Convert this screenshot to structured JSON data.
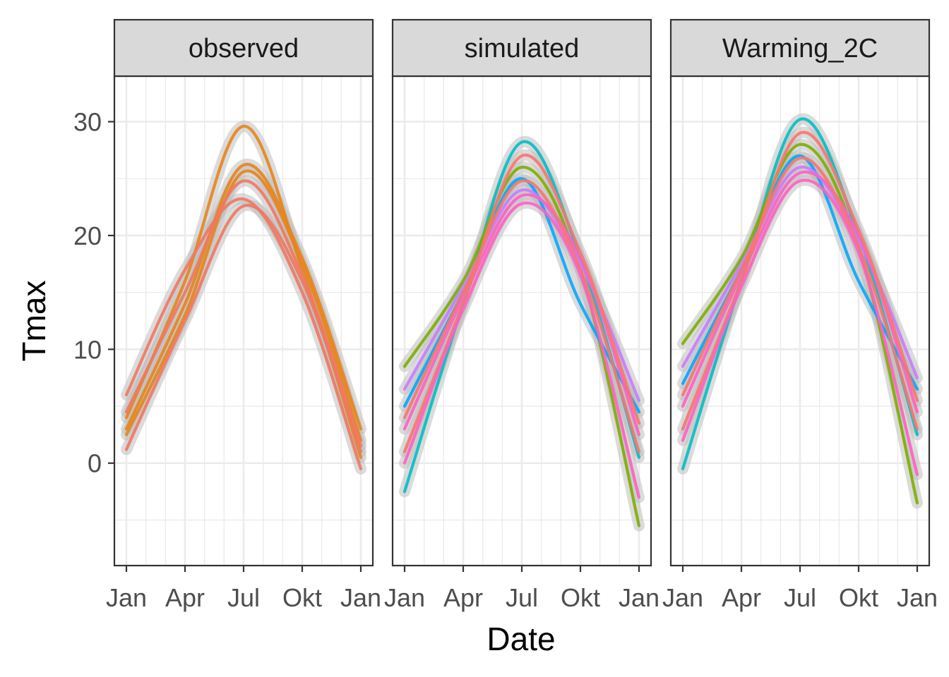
{
  "chart_data": {
    "type": "line",
    "facet_by": "scenario",
    "panels": [
      {
        "label": "observed",
        "series": [
          {
            "color": "#E8841A",
            "x": [
              "Jan",
              "Apr",
              "Jul",
              "Okt",
              "Jan"
            ],
            "y": [
              4.0,
              16.0,
              29.6,
              17.0,
              0.5
            ]
          },
          {
            "color": "#E8841A",
            "x": [
              "Jan",
              "Apr",
              "Jul",
              "Okt",
              "Jan"
            ],
            "y": [
              3.0,
              14.0,
              26.2,
              18.0,
              3.0
            ]
          },
          {
            "color": "#E8841A",
            "x": [
              "Jan",
              "Apr",
              "Jul",
              "Okt",
              "Jan"
            ],
            "y": [
              2.5,
              13.0,
              25.6,
              17.5,
              2.0
            ]
          },
          {
            "color": "#F07860",
            "x": [
              "Jan",
              "Apr",
              "Jul",
              "Okt",
              "Jan"
            ],
            "y": [
              6.0,
              17.0,
              23.2,
              15.0,
              -0.5
            ]
          },
          {
            "color": "#F07860",
            "x": [
              "Jan",
              "Apr",
              "Jul",
              "Okt",
              "Jan"
            ],
            "y": [
              1.2,
              12.5,
              22.6,
              16.0,
              1.0
            ]
          },
          {
            "color": "#F07860",
            "x": [
              "Jan",
              "Apr",
              "Jul",
              "Okt",
              "Jan"
            ],
            "y": [
              4.5,
              15.0,
              24.8,
              16.5,
              1.5
            ]
          }
        ]
      },
      {
        "label": "simulated",
        "series": [
          {
            "color": "#00BFC4",
            "x": [
              "Jan",
              "Apr",
              "Jul",
              "Okt",
              "Jan"
            ],
            "y": [
              -2.5,
              14.0,
              28.2,
              18.0,
              0.5
            ]
          },
          {
            "color": "#7CAE00",
            "x": [
              "Jan",
              "Apr",
              "Jul",
              "Okt",
              "Jan"
            ],
            "y": [
              8.5,
              16.0,
              26.0,
              17.0,
              -5.5
            ]
          },
          {
            "color": "#00A9FF",
            "x": [
              "Jan",
              "Apr",
              "Jul",
              "Okt",
              "Jan"
            ],
            "y": [
              5.0,
              15.0,
              25.0,
              14.0,
              4.5
            ]
          },
          {
            "color": "#C77CFF",
            "x": [
              "Jan",
              "Apr",
              "Jul",
              "Okt",
              "Jan"
            ],
            "y": [
              6.5,
              15.5,
              24.0,
              17.5,
              5.5
            ]
          },
          {
            "color": "#FF61C3",
            "x": [
              "Jan",
              "Apr",
              "Jul",
              "Okt",
              "Jan"
            ],
            "y": [
              3.0,
              14.5,
              23.5,
              18.0,
              2.5
            ]
          },
          {
            "color": "#F8766D",
            "x": [
              "Jan",
              "Apr",
              "Jul",
              "Okt",
              "Jan"
            ],
            "y": [
              1.0,
              14.0,
              27.0,
              18.5,
              3.5
            ]
          },
          {
            "color": "#F8766D",
            "x": [
              "Jan",
              "Apr",
              "Jul",
              "Okt",
              "Jan"
            ],
            "y": [
              4.0,
              15.0,
              24.8,
              17.0,
              1.0
            ]
          },
          {
            "color": "#FF61C3",
            "x": [
              "Jan",
              "Apr",
              "Jul",
              "Okt",
              "Jan"
            ],
            "y": [
              0.0,
              13.5,
              22.8,
              16.5,
              -3.0
            ]
          }
        ]
      },
      {
        "label": "Warming_2C",
        "series": [
          {
            "color": "#00BFC4",
            "x": [
              "Jan",
              "Apr",
              "Jul",
              "Okt",
              "Jan"
            ],
            "y": [
              -0.5,
              16.0,
              30.2,
              20.0,
              2.5
            ]
          },
          {
            "color": "#7CAE00",
            "x": [
              "Jan",
              "Apr",
              "Jul",
              "Okt",
              "Jan"
            ],
            "y": [
              10.5,
              18.0,
              28.0,
              19.0,
              -3.5
            ]
          },
          {
            "color": "#00A9FF",
            "x": [
              "Jan",
              "Apr",
              "Jul",
              "Okt",
              "Jan"
            ],
            "y": [
              7.0,
              17.0,
              27.0,
              16.0,
              6.5
            ]
          },
          {
            "color": "#C77CFF",
            "x": [
              "Jan",
              "Apr",
              "Jul",
              "Okt",
              "Jan"
            ],
            "y": [
              8.5,
              17.5,
              26.0,
              19.5,
              7.5
            ]
          },
          {
            "color": "#FF61C3",
            "x": [
              "Jan",
              "Apr",
              "Jul",
              "Okt",
              "Jan"
            ],
            "y": [
              5.0,
              16.5,
              25.5,
              20.0,
              4.5
            ]
          },
          {
            "color": "#F8766D",
            "x": [
              "Jan",
              "Apr",
              "Jul",
              "Okt",
              "Jan"
            ],
            "y": [
              3.0,
              16.0,
              29.0,
              20.5,
              5.5
            ]
          },
          {
            "color": "#F8766D",
            "x": [
              "Jan",
              "Apr",
              "Jul",
              "Okt",
              "Jan"
            ],
            "y": [
              6.0,
              17.0,
              26.8,
              19.0,
              3.0
            ]
          },
          {
            "color": "#FF61C3",
            "x": [
              "Jan",
              "Apr",
              "Jul",
              "Okt",
              "Jan"
            ],
            "y": [
              2.0,
              15.5,
              24.8,
              18.5,
              -1.0
            ]
          }
        ]
      }
    ],
    "x_ticks": [
      "Jan",
      "Apr",
      "Jul",
      "Okt",
      "Jan"
    ],
    "y_ticks": [
      0,
      10,
      20,
      30
    ],
    "ylim": [
      -9,
      34
    ],
    "xlabel": "Date",
    "ylabel": "Tmax",
    "grid": true,
    "legend": "none",
    "ribbon_color": "#BEBEBE",
    "panel_border_color": "#333333",
    "strip_fill": "#D9D9D9",
    "grid_color": "#EBEBEB"
  }
}
